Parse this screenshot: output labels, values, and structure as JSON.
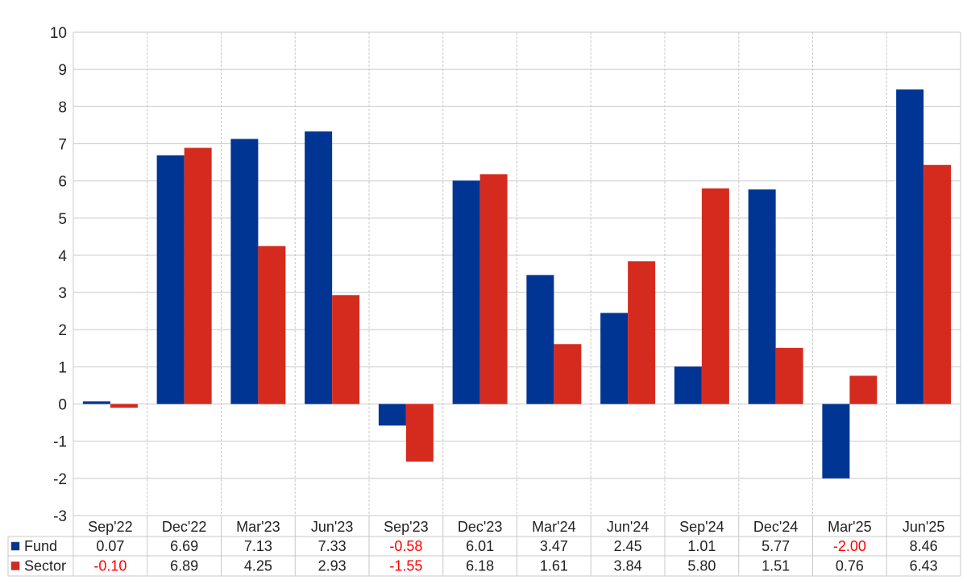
{
  "chart_data": {
    "type": "bar",
    "title": "",
    "xlabel": "",
    "ylabel": "",
    "ylim": [
      -3,
      10
    ],
    "yticks": [
      "10",
      "9",
      "8",
      "7",
      "6",
      "5",
      "4",
      "3",
      "2",
      "1",
      "0",
      "-1",
      "-2",
      "-3"
    ],
    "grid": true,
    "legend_placement": "bottom-table",
    "categories": [
      "Sep'22",
      "Dec'22",
      "Mar'23",
      "Jun'23",
      "Sep'23",
      "Dec'23",
      "Mar'24",
      "Jun'24",
      "Sep'24",
      "Dec'24",
      "Mar'25",
      "Jun'25"
    ],
    "series": [
      {
        "name": "Fund",
        "color": "#003594",
        "values": [
          0.07,
          6.69,
          7.13,
          7.33,
          -0.58,
          6.01,
          3.47,
          2.45,
          1.01,
          5.77,
          -2.0,
          8.46
        ],
        "labels": [
          "0.07",
          "6.69",
          "7.13",
          "7.33",
          "-0.58",
          "6.01",
          "3.47",
          "2.45",
          "1.01",
          "5.77",
          "-2.00",
          "8.46"
        ]
      },
      {
        "name": "Sector",
        "color": "#d52b1e",
        "values": [
          -0.1,
          6.89,
          4.25,
          2.93,
          -1.55,
          6.18,
          1.61,
          3.84,
          5.8,
          1.51,
          0.76,
          6.43
        ],
        "labels": [
          "-0.10",
          "6.89",
          "4.25",
          "2.93",
          "-1.55",
          "6.18",
          "1.61",
          "3.84",
          "5.80",
          "1.51",
          "0.76",
          "6.43"
        ]
      }
    ],
    "negative_label_color": "#ff0000",
    "positive_label_color": "#222222",
    "grid_color": "#c8c8c8"
  }
}
